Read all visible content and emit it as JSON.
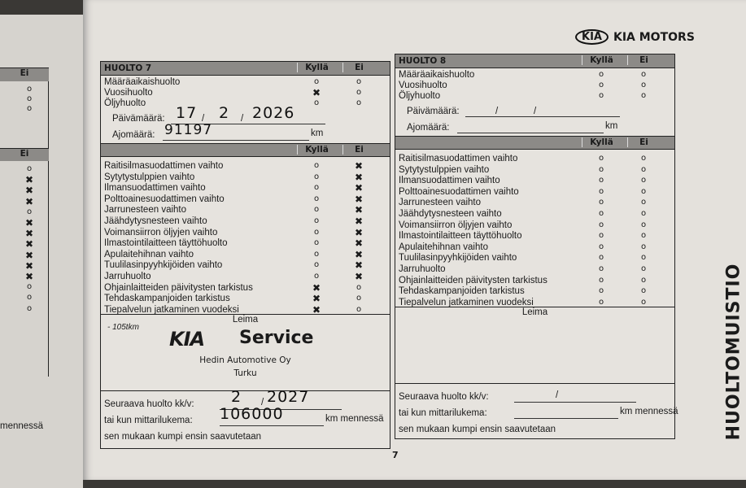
{
  "brand": {
    "logo_text": "KIA",
    "name": "KIA MOTORS"
  },
  "side_title": "HUOLTOMUISTIO",
  "page_number": "7",
  "columns": {
    "yes": "Kyllä",
    "no": "Ei"
  },
  "labels": {
    "date": "Päivämäärä:",
    "mileage": "Ajomäärä:",
    "km": "km",
    "stamp": "Leima",
    "next_service": "Seuraava huolto kk/v:",
    "or_when": "tai kun mittarilukema:",
    "km_by": "km mennessä",
    "whichever": "sen mukaan kumpi ensin saavutetaan"
  },
  "left_page": {
    "column_no": "Ei",
    "top_marks": [
      "o",
      "o",
      "o"
    ],
    "marks": [
      "o",
      "x",
      "x",
      "x",
      "o",
      "x",
      "x",
      "x",
      "x",
      "x",
      "x",
      "o",
      "o",
      "o"
    ],
    "trailing_text": "mennessä"
  },
  "service_7": {
    "title": "HUOLTO 7",
    "types": [
      {
        "label": "Määräaikaishuolto",
        "checked": null
      },
      {
        "label": "Vuosihuolto",
        "checked": "yes"
      },
      {
        "label": "Öljyhuolto",
        "checked": null
      }
    ],
    "date": {
      "day": "17",
      "month": "2",
      "year": "2026"
    },
    "mileage": "91197",
    "tasks": [
      {
        "label": "Raitisilmasuodattimen vaihto",
        "checked": "no"
      },
      {
        "label": "Sytytystulppien vaihto",
        "checked": "no"
      },
      {
        "label": "Ilmansuodattimen vaihto",
        "checked": "no"
      },
      {
        "label": "Polttoainesuodattimen vaihto",
        "checked": "no"
      },
      {
        "label": "Jarrunesteen vaihto",
        "checked": "no"
      },
      {
        "label": "Jäähdytysnesteen vaihto",
        "checked": "no"
      },
      {
        "label": "Voimansiirron öljyjen vaihto",
        "checked": "no"
      },
      {
        "label": "Ilmastointilaitteen täyttöhuolto",
        "checked": "no"
      },
      {
        "label": "Apulaitehihnan vaihto",
        "checked": "no"
      },
      {
        "label": "Tuulilasinpyyhkijöiden vaihto",
        "checked": "no"
      },
      {
        "label": "Jarruhuolto",
        "checked": "no"
      },
      {
        "label": "Ohjainlaitteiden päivitysten tarkistus",
        "checked": "yes"
      },
      {
        "label": "Tehdaskampanjoiden tarkistus",
        "checked": "yes"
      },
      {
        "label": "Tiepalvelun jatkaminen vuodeksi",
        "checked": "yes"
      }
    ],
    "stamp": {
      "note": "- 105tkm",
      "logo": "KIA",
      "service": "Service",
      "dealer": "Hedin Automotive Oy",
      "city": "Turku"
    },
    "next": {
      "month": "2",
      "year": "2027",
      "mileage": "106000"
    }
  },
  "service_8": {
    "title": "HUOLTO 8",
    "types": [
      {
        "label": "Määräaikaishuolto",
        "checked": null
      },
      {
        "label": "Vuosihuolto",
        "checked": null
      },
      {
        "label": "Öljyhuolto",
        "checked": null
      }
    ],
    "tasks": [
      {
        "label": "Raitisilmasuodattimen vaihto",
        "checked": null
      },
      {
        "label": "Sytytystulppien vaihto",
        "checked": null
      },
      {
        "label": "Ilmansuodattimen vaihto",
        "checked": null
      },
      {
        "label": "Polttoainesuodattimen vaihto",
        "checked": null
      },
      {
        "label": "Jarrunesteen vaihto",
        "checked": null
      },
      {
        "label": "Jäähdytysnesteen vaihto",
        "checked": null
      },
      {
        "label": "Voimansiirron öljyjen vaihto",
        "checked": null
      },
      {
        "label": "Ilmastointilaitteen täyttöhuolto",
        "checked": null
      },
      {
        "label": "Apulaitehihnan vaihto",
        "checked": null
      },
      {
        "label": "Tuulilasinpyyhkijöiden vaihto",
        "checked": null
      },
      {
        "label": "Jarruhuolto",
        "checked": null
      },
      {
        "label": "Ohjainlaitteiden päivitysten tarkistus",
        "checked": null
      },
      {
        "label": "Tehdaskampanjoiden tarkistus",
        "checked": null
      },
      {
        "label": "Tiepalvelun jatkaminen vuodeksi",
        "checked": null
      }
    ]
  }
}
